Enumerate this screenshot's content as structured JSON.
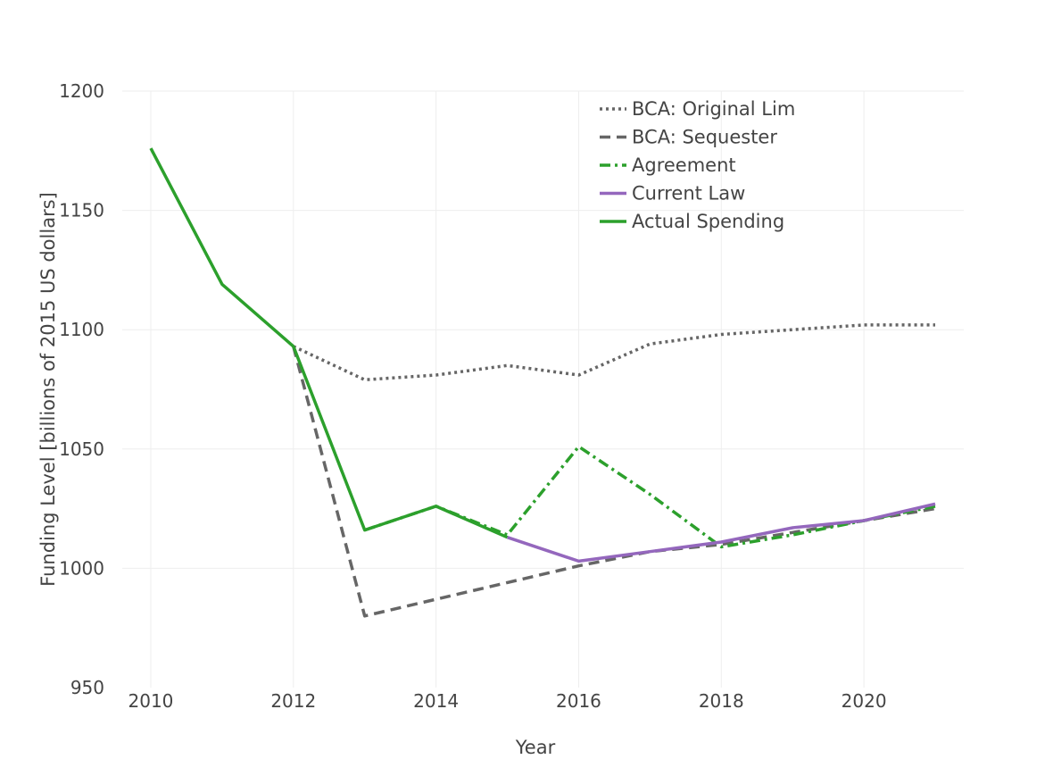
{
  "chart_data": {
    "type": "line",
    "xlabel": "Year",
    "ylabel": "Funding Level [billions of 2015 US dollars]",
    "xlim": [
      2009.6,
      2021.4
    ],
    "ylim": [
      950,
      1200
    ],
    "xticks": [
      2010,
      2012,
      2014,
      2016,
      2018,
      2020
    ],
    "yticks": [
      950,
      1000,
      1050,
      1100,
      1150,
      1200
    ],
    "grid": true,
    "legend": "top-right",
    "series": [
      {
        "name": "BCA: Original Lim",
        "style": "dotted",
        "color": "#666666",
        "x": [
          2012,
          2013,
          2014,
          2015,
          2016,
          2017,
          2018,
          2019,
          2020,
          2021
        ],
        "y": [
          1093,
          1079,
          1081,
          1085,
          1081,
          1094,
          1098,
          1100,
          1102,
          1102
        ]
      },
      {
        "name": "BCA: Sequester",
        "style": "dashed",
        "color": "#666666",
        "x": [
          2012,
          2013,
          2014,
          2015,
          2016,
          2017,
          2018,
          2019,
          2020,
          2021
        ],
        "y": [
          1093,
          980,
          987,
          994,
          1001,
          1007,
          1010,
          1015,
          1020,
          1025
        ]
      },
      {
        "name": "Agreement",
        "style": "dashdot",
        "color": "#2ca02c",
        "x": [
          2013,
          2014,
          2015,
          2016,
          2017,
          2018,
          2019,
          2020,
          2021
        ],
        "y": [
          1016,
          1026,
          1014,
          1051,
          1031,
          1009,
          1014,
          1020,
          1026
        ]
      },
      {
        "name": "Current Law",
        "style": "solid",
        "color": "#9467bd",
        "x": [
          2015,
          2016,
          2017,
          2018,
          2019,
          2020,
          2021
        ],
        "y": [
          1013,
          1003,
          1007,
          1011,
          1017,
          1020,
          1027
        ]
      },
      {
        "name": "Actual Spending",
        "style": "solid",
        "color": "#2ca02c",
        "x": [
          2010,
          2011,
          2012,
          2013,
          2014,
          2015
        ],
        "y": [
          1176,
          1119,
          1093,
          1016,
          1026,
          1013
        ]
      }
    ]
  }
}
